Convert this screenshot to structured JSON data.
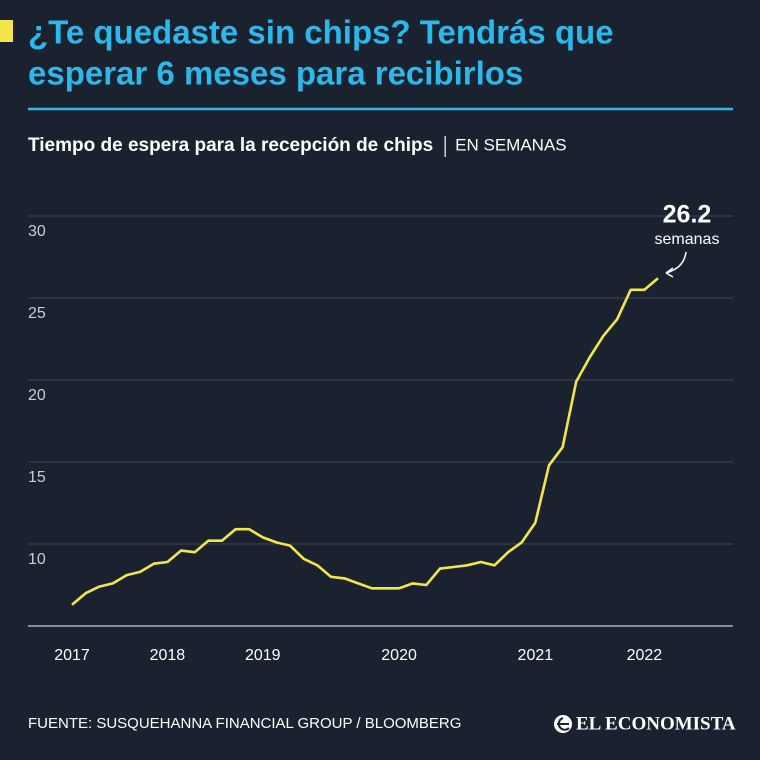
{
  "chart_data": {
    "type": "line",
    "title": [
      "¿Te quedaste sin chips? Tendrás que",
      "esperar 6 meses para recibirlos"
    ],
    "subtitle": "Tiempo de espera para la recepción de chips",
    "unit": "EN SEMANAS",
    "categories": [
      "2017",
      null,
      null,
      null,
      null,
      null,
      null,
      "2018",
      null,
      null,
      null,
      null,
      null,
      null,
      "2019",
      null,
      null,
      null,
      null,
      null,
      null,
      null,
      null,
      null,
      "2020",
      null,
      null,
      null,
      null,
      null,
      null,
      null,
      null,
      null,
      "2021",
      null,
      null,
      null,
      null,
      null,
      null,
      null,
      "2022",
      null
    ],
    "values": [
      6.3,
      7.0,
      7.4,
      7.6,
      8.1,
      8.3,
      8.8,
      8.9,
      9.6,
      9.5,
      10.2,
      10.2,
      10.9,
      10.9,
      10.4,
      10.1,
      9.9,
      9.1,
      8.7,
      8.0,
      7.9,
      7.6,
      7.3,
      7.3,
      7.3,
      7.6,
      7.5,
      8.5,
      8.6,
      8.7,
      8.9,
      8.7,
      9.5,
      10.1,
      11.3,
      14.8,
      15.9,
      19.9,
      21.4,
      22.7,
      23.7,
      25.5,
      25.5,
      26.2
    ],
    "color": "#f3e64a",
    "ylim": [
      5,
      30
    ],
    "yticks": [
      10,
      15,
      20,
      25,
      30
    ],
    "grid": true,
    "annotation": "semanas",
    "source": "FUENTE: SUSQUEHANNA FINANCIAL GROUP / BLOOMBERG",
    "brand": "EL ECONOMISTA"
  }
}
